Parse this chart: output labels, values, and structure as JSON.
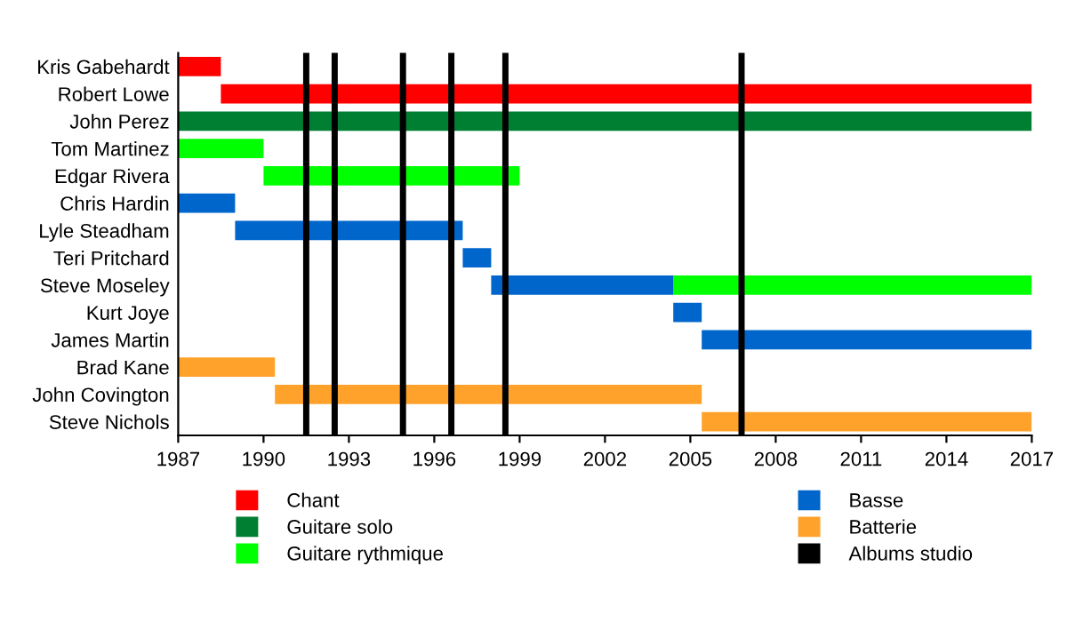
{
  "chart_data": {
    "type": "bar",
    "orientation": "horizontal",
    "legend": "bottom",
    "grid": false,
    "categories": [
      "Kris Gabehardt",
      "Robert Lowe",
      "John Perez",
      "Tom Martinez",
      "Edgar Rivera",
      "Chris Hardin",
      "Lyle Steadham",
      "Teri Pritchard",
      "Steve Moseley",
      "Kurt Joye",
      "James Martin",
      "Brad Kane",
      "John Covington",
      "Steve Nichols"
    ],
    "xlim": [
      1987,
      2017
    ],
    "xticks": [
      1987,
      1990,
      1993,
      1996,
      1999,
      2002,
      2005,
      2008,
      2011,
      2014,
      2017
    ],
    "series": [
      {
        "name": "Chant",
        "color": "#ff0000",
        "base": [
          1987,
          1988.5,
          null,
          null,
          null,
          null,
          null,
          null,
          null,
          null,
          null,
          null,
          null,
          null
        ],
        "values": [
          1.5,
          28.5,
          null,
          null,
          null,
          null,
          null,
          null,
          null,
          null,
          null,
          null,
          null,
          null
        ]
      },
      {
        "name": "Guitare solo",
        "color": "#007f33",
        "base": [
          null,
          null,
          1987,
          null,
          null,
          null,
          null,
          null,
          null,
          null,
          null,
          null,
          null,
          null
        ],
        "values": [
          null,
          null,
          30,
          null,
          null,
          null,
          null,
          null,
          null,
          null,
          null,
          null,
          null,
          null
        ]
      },
      {
        "name": "Guitare rythmique",
        "color": "#00ff00",
        "base": [
          null,
          null,
          null,
          1987,
          1990,
          null,
          null,
          null,
          2004.4,
          null,
          null,
          null,
          null,
          null
        ],
        "values": [
          null,
          null,
          null,
          3,
          9,
          null,
          null,
          null,
          12.6,
          null,
          null,
          null,
          null,
          null
        ]
      },
      {
        "name": "Basse",
        "color": "#0066cc",
        "base": [
          null,
          null,
          null,
          null,
          null,
          1987,
          1989,
          1997,
          1998,
          2004.4,
          2005.4,
          null,
          null,
          null
        ],
        "values": [
          null,
          null,
          null,
          null,
          null,
          2,
          8,
          1,
          6.4,
          1,
          11.6,
          null,
          null,
          null
        ]
      },
      {
        "name": "Batterie",
        "color": "#ffa22b",
        "base": [
          null,
          null,
          null,
          null,
          null,
          null,
          null,
          null,
          null,
          null,
          null,
          1987,
          1990.4,
          2005.4
        ],
        "values": [
          null,
          null,
          null,
          null,
          null,
          null,
          null,
          null,
          null,
          null,
          null,
          3.4,
          15,
          11.6
        ]
      }
    ],
    "ref_lines": [
      {
        "axis": "x",
        "value": 1991.5,
        "label": "Albums studio",
        "color": "#000000"
      },
      {
        "axis": "x",
        "value": 1992.5,
        "color": "#000000"
      },
      {
        "axis": "x",
        "value": 1994.9,
        "color": "#000000"
      },
      {
        "axis": "x",
        "value": 1996.6,
        "color": "#000000"
      },
      {
        "axis": "x",
        "value": 1998.5,
        "color": "#000000"
      },
      {
        "axis": "x",
        "value": 2006.8,
        "color": "#000000"
      }
    ]
  }
}
